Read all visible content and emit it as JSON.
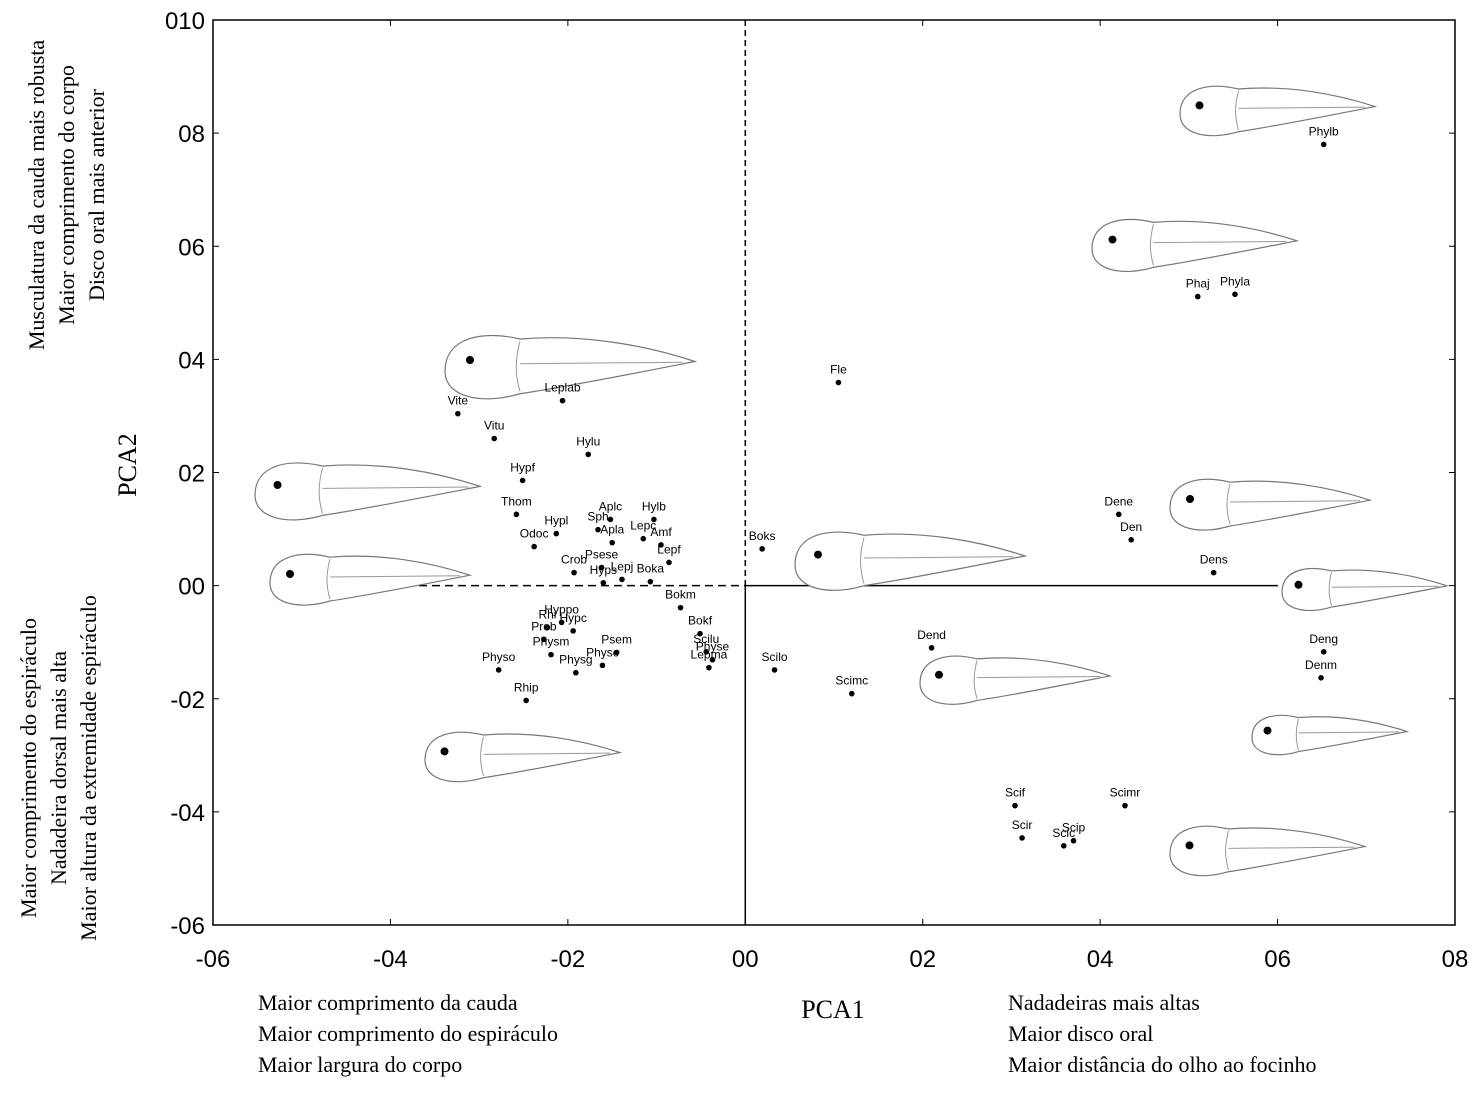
{
  "chart_data": {
    "type": "scatter",
    "x_label": "PCA1",
    "y_label": "PCA2",
    "y_annotations_top": [
      "Musculatura da cauda mais robusta",
      "Maior comprimento do corpo",
      "Disco oral mais anterior"
    ],
    "y_annotations_bottom": [
      "Maior comprimento do espiráculo",
      "Nadadeira dorsal mais alta",
      "Maior altura da extremidade espiráculo"
    ],
    "x_annotations_left": [
      "Maior comprimento da cauda",
      "Maior comprimento do espiráculo",
      "Maior largura do corpo"
    ],
    "x_annotations_right": [
      "Nadadeiras mais altas",
      "Maior disco oral",
      "Maior distância do olho ao focinho"
    ],
    "xlim": [
      -0.6,
      0.8
    ],
    "xticks": [
      {
        "value": -0.6,
        "label": "-06"
      },
      {
        "value": -0.4,
        "label": "-04"
      },
      {
        "value": -0.2,
        "label": "-02"
      },
      {
        "value": 0,
        "label": "00"
      },
      {
        "value": 0.2,
        "label": "02"
      },
      {
        "value": 0.4,
        "label": "04"
      },
      {
        "value": 0.6,
        "label": "06"
      },
      {
        "value": 0.8,
        "label": "08"
      }
    ],
    "ylim": [
      -0.06,
      0.1
    ],
    "yticks": [
      {
        "value": 0.1,
        "label": "010"
      },
      {
        "value": 0.08,
        "label": "08"
      },
      {
        "value": 0.06,
        "label": "06"
      },
      {
        "value": 0.04,
        "label": "04"
      },
      {
        "value": 0.02,
        "label": "02"
      },
      {
        "value": 0,
        "label": "00"
      },
      {
        "value": -0.02,
        "label": "-02"
      },
      {
        "value": -0.04,
        "label": "-04"
      },
      {
        "value": -0.06,
        "label": "-06"
      }
    ],
    "color": "#000000",
    "point_labels": [
      "Phylb",
      "Phaj",
      "Phyla",
      "Fle",
      "Leplab",
      "Vite",
      "Vitu",
      "Hylu",
      "Hypf",
      "Thom",
      "Hypl",
      "Sph",
      "Aplc",
      "Hylb",
      "Lepc",
      "Amf",
      "Odoc",
      "Apla",
      "Lepf",
      "Boks",
      "Psese",
      "Crob",
      "Hyps",
      "Lepj",
      "Boka",
      "Dene",
      "Den",
      "Dens",
      "Bokm",
      "Rhi",
      "Hyppo",
      "Hypc",
      "Prob",
      "Psem",
      "Bokf",
      "Scilu",
      "Physm",
      "Physc",
      "Physe",
      "Lepma",
      "Scilo",
      "Physo",
      "Physg",
      "Rhip",
      "Dend",
      "Scimc",
      "Deng",
      "Denm",
      "Scif",
      "Scimr",
      "Scir",
      "Scic",
      "Scip"
    ],
    "x": [
      0.652,
      0.51,
      0.552,
      0.105,
      -0.206,
      -0.324,
      -0.283,
      -0.177,
      -0.251,
      -0.258,
      -0.213,
      -0.166,
      -0.152,
      -0.103,
      -0.115,
      -0.095,
      -0.238,
      -0.15,
      -0.086,
      0.019,
      -0.162,
      -0.193,
      -0.16,
      -0.139,
      -0.107,
      0.421,
      0.435,
      0.528,
      -0.073,
      -0.223,
      -0.207,
      -0.194,
      -0.227,
      -0.145,
      -0.051,
      -0.044,
      -0.219,
      -0.161,
      -0.037,
      -0.041,
      0.033,
      -0.278,
      -0.191,
      -0.247,
      0.21,
      0.12,
      0.652,
      0.649,
      0.304,
      0.428,
      0.312,
      0.359,
      0.37
    ],
    "values": [
      0.078,
      0.0511,
      0.0515,
      0.0359,
      0.0327,
      0.0304,
      0.026,
      0.0232,
      0.0186,
      0.0126,
      0.0092,
      0.0099,
      0.0117,
      0.0117,
      0.0083,
      0.0072,
      0.0069,
      0.0076,
      0.0041,
      0.0065,
      0.0032,
      0.0023,
      0.0005,
      0.0011,
      0.0007,
      0.0126,
      0.0081,
      0.0023,
      -0.0039,
      -0.0074,
      -0.0065,
      -0.008,
      -0.0095,
      -0.0118,
      -0.0085,
      -0.0117,
      -0.0122,
      -0.0141,
      -0.0131,
      -0.0145,
      -0.0149,
      -0.0149,
      -0.0154,
      -0.0203,
      -0.011,
      -0.0191,
      -0.0117,
      -0.0163,
      -0.0389,
      -0.0389,
      -0.0446,
      -0.046,
      -0.0451
    ]
  }
}
